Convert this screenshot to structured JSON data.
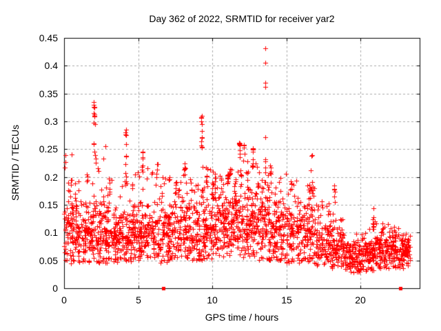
{
  "figure": {
    "title": "Day 362 of 2022, SRMTID for receiver yar2",
    "xlabel": "GPS time / hours",
    "ylabel": "SRMTID / TECUs"
  },
  "colors": {
    "marker": "#ff0000",
    "axis": "#000000",
    "grid": "#a8a8a8",
    "background": "#ffffff"
  },
  "chart_data": {
    "type": "scatter",
    "title": "Day 362 of 2022, SRMTID for receiver yar2",
    "xlabel": "GPS time / hours",
    "ylabel": "SRMTID / TECUs",
    "xlim": [
      0,
      24
    ],
    "ylim": [
      0,
      0.45
    ],
    "xticks": [
      0,
      5,
      10,
      15,
      20
    ],
    "xtick_labels": [
      "0",
      "5",
      "10",
      "15",
      "20"
    ],
    "yticks": [
      0,
      0.05,
      0.1,
      0.15,
      0.2,
      0.25,
      0.3,
      0.35,
      0.4,
      0.45
    ],
    "ytick_labels": [
      "0",
      "0.05",
      "0.1",
      "0.15",
      "0.2",
      "0.25",
      "0.3",
      "0.35",
      "0.4",
      "0.45"
    ],
    "grid": true,
    "legend": "none",
    "data_xmax": 23.35,
    "series": [
      {
        "name": "srmtid-points",
        "marker": "plus",
        "color": "#ff0000",
        "synthesis": {
          "seed": 1362,
          "x_quantum_per_hour": 30,
          "bands": [
            [
              0,
              110,
              0.105,
              0.034,
              0.045,
              0.25
            ],
            [
              1,
              100,
              0.095,
              0.03,
              0.045,
              0.21
            ],
            [
              2,
              115,
              0.1,
              0.036,
              0.045,
              0.26
            ],
            [
              3,
              100,
              0.09,
              0.028,
              0.045,
              0.2
            ],
            [
              4,
              100,
              0.095,
              0.03,
              0.045,
              0.21
            ],
            [
              5,
              100,
              0.1,
              0.03,
              0.05,
              0.22
            ],
            [
              6,
              95,
              0.095,
              0.03,
              0.045,
              0.2
            ],
            [
              7,
              100,
              0.1,
              0.032,
              0.05,
              0.21
            ],
            [
              8,
              100,
              0.1,
              0.032,
              0.05,
              0.22
            ],
            [
              9,
              105,
              0.105,
              0.034,
              0.05,
              0.22
            ],
            [
              10,
              110,
              0.12,
              0.035,
              0.055,
              0.23
            ],
            [
              11,
              110,
              0.12,
              0.035,
              0.055,
              0.22
            ],
            [
              12,
              105,
              0.115,
              0.035,
              0.055,
              0.23
            ],
            [
              13,
              105,
              0.11,
              0.034,
              0.05,
              0.22
            ],
            [
              14,
              100,
              0.1,
              0.032,
              0.05,
              0.21
            ],
            [
              15,
              95,
              0.095,
              0.03,
              0.045,
              0.2
            ],
            [
              16,
              95,
              0.09,
              0.03,
              0.045,
              0.19
            ],
            [
              17,
              95,
              0.085,
              0.028,
              0.04,
              0.16
            ],
            [
              18,
              95,
              0.075,
              0.025,
              0.035,
              0.15
            ],
            [
              19,
              100,
              0.055,
              0.016,
              0.028,
              0.1
            ],
            [
              20,
              100,
              0.06,
              0.018,
              0.03,
              0.12
            ],
            [
              21,
              100,
              0.07,
              0.02,
              0.035,
              0.13
            ],
            [
              22,
              100,
              0.065,
              0.018,
              0.035,
              0.115
            ],
            [
              23,
              40,
              0.065,
              0.016,
              0.04,
              0.1
            ]
          ],
          "spikes": [
            [
              0.08,
              0.215,
              0.25,
              3
            ],
            [
              0.5,
              0.185,
              0.21,
              3
            ],
            [
              1.55,
              0.185,
              0.215,
              3
            ],
            [
              2.02,
              0.29,
              0.335,
              6
            ],
            [
              2.05,
              0.243,
              0.262,
              3
            ],
            [
              2.12,
              0.225,
              0.236,
              2
            ],
            [
              2.3,
              0.21,
              0.225,
              2
            ],
            [
              3.05,
              0.15,
              0.195,
              4
            ],
            [
              4.18,
              0.19,
              0.283,
              9
            ],
            [
              4.6,
              0.17,
              0.2,
              3
            ],
            [
              5.28,
              0.198,
              0.246,
              6
            ],
            [
              6.28,
              0.188,
              0.225,
              4
            ],
            [
              7.1,
              0.175,
              0.205,
              4
            ],
            [
              7.55,
              0.17,
              0.195,
              4
            ],
            [
              8.15,
              0.185,
              0.23,
              5
            ],
            [
              8.6,
              0.17,
              0.2,
              3
            ],
            [
              9.28,
              0.252,
              0.31,
              9
            ],
            [
              9.6,
              0.185,
              0.205,
              4
            ],
            [
              10.2,
              0.17,
              0.21,
              5
            ],
            [
              10.6,
              0.165,
              0.2,
              4
            ],
            [
              11.05,
              0.185,
              0.222,
              8
            ],
            [
              11.5,
              0.17,
              0.2,
              4
            ],
            [
              11.85,
              0.233,
              0.262,
              8
            ],
            [
              11.92,
              0.186,
              0.206,
              5
            ],
            [
              12.15,
              0.238,
              0.258,
              4
            ],
            [
              12.4,
              0.17,
              0.21,
              4
            ],
            [
              12.75,
              0.208,
              0.252,
              8
            ],
            [
              13.1,
              0.17,
              0.2,
              4
            ],
            [
              13.57,
              0.19,
              0.24,
              6
            ],
            [
              13.95,
              0.188,
              0.235,
              6
            ],
            [
              14.55,
              0.175,
              0.205,
              4
            ],
            [
              15.3,
              0.168,
              0.2,
              5
            ],
            [
              16.55,
              0.16,
              0.19,
              4
            ],
            [
              16.7,
              0.21,
              0.24,
              2
            ],
            [
              16.78,
              0.162,
              0.195,
              4
            ],
            [
              18.25,
              0.152,
              0.19,
              6
            ],
            [
              20.85,
              0.1,
              0.155,
              10
            ],
            [
              22.3,
              0.095,
              0.115,
              3
            ]
          ]
        },
        "notable_points": [
          [
            13.56,
            0.432
          ],
          [
            13.56,
            0.405
          ],
          [
            13.6,
            0.37
          ],
          [
            13.56,
            0.362
          ],
          [
            13.57,
            0.272
          ],
          [
            2.02,
            0.335
          ],
          [
            2.0,
            0.33
          ],
          [
            2.05,
            0.325
          ],
          [
            2.02,
            0.315
          ],
          [
            2.1,
            0.295
          ],
          [
            9.28,
            0.31
          ],
          [
            9.25,
            0.3
          ],
          [
            9.3,
            0.295
          ],
          [
            4.18,
            0.285
          ],
          [
            4.2,
            0.275
          ],
          [
            11.85,
            0.26
          ],
          [
            12.75,
            0.25
          ],
          [
            16.7,
            0.238
          ],
          [
            5.3,
            0.245
          ],
          [
            6.3,
            0.223
          ],
          [
            9.35,
            0.218
          ]
        ]
      },
      {
        "name": "zero-flags",
        "marker": "filled-square",
        "color": "#ff0000",
        "points": [
          [
            6.72,
            0
          ],
          [
            22.7,
            0
          ]
        ]
      }
    ]
  }
}
